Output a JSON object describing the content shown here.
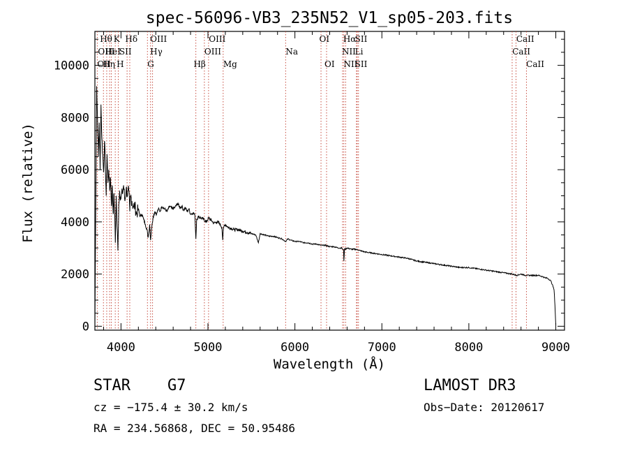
{
  "chart_data": {
    "type": "line",
    "title": "spec-56096-VB3_235N52_V1_sp05-203.fits",
    "xlabel": "Wavelength (Å)",
    "ylabel": "Flux (relative)",
    "xlim": [
      3700,
      9100
    ],
    "ylim": [
      -150,
      11300
    ],
    "xticks": [
      4000,
      5000,
      6000,
      7000,
      8000,
      9000
    ],
    "xtick_labels": [
      "4000",
      "5000",
      "6000",
      "7000",
      "8000",
      "9000"
    ],
    "yticks": [
      0,
      2000,
      4000,
      6000,
      8000,
      10000
    ],
    "ytick_labels": [
      "0",
      "2000",
      "4000",
      "6000",
      "8000",
      "10000"
    ],
    "series": [
      {
        "name": "flux",
        "x": [
          3700,
          3710,
          3720,
          3730,
          3740,
          3750,
          3760,
          3770,
          3780,
          3790,
          3800,
          3810,
          3820,
          3830,
          3840,
          3850,
          3860,
          3870,
          3880,
          3890,
          3900,
          3910,
          3920,
          3930,
          3935,
          3945,
          3955,
          3965,
          3968,
          3975,
          3985,
          4000,
          4015,
          4030,
          4045,
          4060,
          4075,
          4090,
          4101,
          4110,
          4125,
          4140,
          4160,
          4180,
          4200,
          4220,
          4240,
          4260,
          4280,
          4300,
          4310,
          4320,
          4330,
          4340,
          4350,
          4370,
          4390,
          4410,
          4430,
          4450,
          4470,
          4500,
          4530,
          4560,
          4590,
          4620,
          4650,
          4680,
          4700,
          4720,
          4740,
          4760,
          4780,
          4800,
          4830,
          4850,
          4861,
          4870,
          4890,
          4920,
          4950,
          4980,
          5010,
          5040,
          5070,
          5100,
          5130,
          5160,
          5170,
          5175,
          5185,
          5200,
          5230,
          5270,
          5300,
          5350,
          5400,
          5450,
          5500,
          5550,
          5580,
          5600,
          5650,
          5700,
          5750,
          5800,
          5850,
          5893,
          5920,
          5950,
          6000,
          6050,
          6100,
          6150,
          6200,
          6250,
          6300,
          6350,
          6400,
          6450,
          6500,
          6540,
          6560,
          6563,
          6570,
          6580,
          6600,
          6650,
          6700,
          6750,
          6800,
          6900,
          7000,
          7100,
          7200,
          7300,
          7400,
          7500,
          7600,
          7700,
          7800,
          7900,
          8000,
          8100,
          8200,
          8300,
          8400,
          8500,
          8550,
          8600,
          8650,
          8700,
          8750,
          8800,
          8850,
          8880,
          8900,
          8920,
          8940,
          8960,
          8980,
          8990,
          9000
        ],
        "values": [
          100,
          4500,
          9200,
          8000,
          6500,
          7800,
          6000,
          8500,
          7200,
          6600,
          5900,
          7100,
          6200,
          5000,
          6600,
          5500,
          6000,
          5200,
          5700,
          4600,
          5400,
          4300,
          5100,
          4000,
          3200,
          5000,
          3800,
          2900,
          3500,
          4700,
          5200,
          4900,
          5100,
          5400,
          4800,
          5300,
          5000,
          5200,
          4400,
          5000,
          4800,
          4600,
          4600,
          4300,
          4500,
          4200,
          4300,
          4100,
          3900,
          3700,
          3400,
          3600,
          3900,
          3300,
          3700,
          4200,
          4400,
          4300,
          4500,
          4400,
          4600,
          4500,
          4400,
          4600,
          4500,
          4550,
          4700,
          4550,
          4600,
          4450,
          4550,
          4400,
          4500,
          4300,
          4350,
          4250,
          3350,
          4100,
          4200,
          4150,
          4100,
          4000,
          4150,
          4050,
          3950,
          4000,
          3950,
          3800,
          3300,
          3600,
          3850,
          3900,
          3800,
          3750,
          3700,
          3700,
          3650,
          3600,
          3550,
          3500,
          3200,
          3550,
          3500,
          3450,
          3450,
          3400,
          3350,
          3250,
          3350,
          3300,
          3250,
          3250,
          3200,
          3200,
          3150,
          3150,
          3100,
          3100,
          3050,
          3050,
          3000,
          3000,
          2900,
          2500,
          2950,
          2950,
          3000,
          2950,
          2950,
          2900,
          2850,
          2800,
          2750,
          2700,
          2650,
          2600,
          2500,
          2450,
          2400,
          2350,
          2300,
          2250,
          2250,
          2200,
          2150,
          2100,
          2050,
          2000,
          1950,
          2000,
          1950,
          1950,
          1950,
          1950,
          1900,
          1850,
          1850,
          1800,
          1750,
          1600,
          1400,
          800,
          50
        ]
      }
    ],
    "lines": [
      {
        "label": "OII",
        "x": 3727,
        "row": 2,
        "x_label": 3727
      },
      {
        "label": "Hθ",
        "x": 3798,
        "row": 0,
        "x_label": 3758
      },
      {
        "label": "OIII",
        "x": 3869,
        "row": 1,
        "x_label": 3735
      },
      {
        "label": "Hη",
        "x": 3836,
        "row": 2,
        "x_label": 3790
      },
      {
        "label": "HeI",
        "x": 3889,
        "row": 1,
        "x_label": 3818
      },
      {
        "label": "K",
        "x": 3934,
        "row": 0,
        "x_label": 3915
      },
      {
        "label": "H",
        "x": 3969,
        "row": 2,
        "x_label": 3950
      },
      {
        "label": "SII",
        "x": 4070,
        "row": 1,
        "x_label": 3980
      },
      {
        "label": "Hδ",
        "x": 4101,
        "row": 0,
        "x_label": 4048
      },
      {
        "label": "OIII",
        "x": 4363,
        "row": 0,
        "x_label": 4335
      },
      {
        "label": "Hγ",
        "x": 4340,
        "row": 1,
        "x_label": 4335
      },
      {
        "label": "G",
        "x": 4304,
        "row": 2,
        "x_label": 4304
      },
      {
        "label": "OIII",
        "x": 5007,
        "row": 0,
        "x_label": 5010
      },
      {
        "label": "OIII",
        "x": 4959,
        "row": 1,
        "x_label": 4959
      },
      {
        "label": "Hβ",
        "x": 4861,
        "row": 2,
        "x_label": 4835
      },
      {
        "label": "Mg",
        "x": 5175,
        "row": 2,
        "x_label": 5175
      },
      {
        "label": "Na",
        "x": 5893,
        "row": 1,
        "x_label": 5893
      },
      {
        "label": "OI",
        "x": 6300,
        "row": 0,
        "x_label": 6280
      },
      {
        "label": "OI",
        "x": 6364,
        "row": 2,
        "x_label": 6340
      },
      {
        "label": "Hα",
        "x": 6563,
        "row": 0,
        "x_label": 6555
      },
      {
        "label": "SII",
        "x": 6716,
        "row": 0,
        "x_label": 6690
      },
      {
        "label": "NII",
        "x": 6548,
        "row": 1,
        "x_label": 6540
      },
      {
        "label": "Li",
        "x": 6708,
        "row": 1,
        "x_label": 6690
      },
      {
        "label": "NII",
        "x": 6583,
        "row": 2,
        "x_label": 6560
      },
      {
        "label": "SII",
        "x": 6731,
        "row": 2,
        "x_label": 6690
      },
      {
        "label": "CaII",
        "x": 8662,
        "row": 0,
        "x_label": 8545
      },
      {
        "label": "CaII",
        "x": 8498,
        "row": 1,
        "x_label": 8500
      },
      {
        "label": "CaII",
        "x": 8542,
        "row": 2,
        "x_label": 8660
      }
    ]
  },
  "info": {
    "class_label": "STAR",
    "subclass_label": "G7",
    "survey": "LAMOST DR3",
    "redshift": "cz = −175.4 ± 30.2 km/s",
    "obs_date": "Obs−Date: 20120617",
    "coords": "RA = 234.56868, DEC =  50.95486"
  }
}
